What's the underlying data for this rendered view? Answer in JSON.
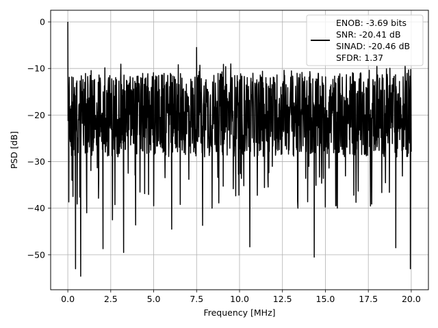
{
  "chart_data": {
    "type": "line",
    "xlabel": "Frequency [MHz]",
    "ylabel": "PSD [dB]",
    "xlim": [
      -1.0,
      21.0
    ],
    "ylim": [
      -57.5,
      2.5
    ],
    "x_ticks": [
      0.0,
      2.5,
      5.0,
      7.5,
      10.0,
      12.5,
      15.0,
      17.5,
      20.0
    ],
    "x_tick_labels": [
      "0.0",
      "2.5",
      "5.0",
      "7.5",
      "10.0",
      "12.5",
      "15.0",
      "17.5",
      "20.0"
    ],
    "y_ticks": [
      0,
      -10,
      -20,
      -30,
      -40,
      -50
    ],
    "y_tick_labels": [
      "0",
      "−10",
      "−20",
      "−30",
      "−40",
      "−50"
    ],
    "grid": true,
    "legend_position": "top-right",
    "series_color": "#000000",
    "series": [
      {
        "name": "ENOB: -3.69 bits\nSNR: -20.41 dB\nSINAD: -20.46 dB\nSFDR: 1.37",
        "x_range": [
          0.0,
          20.0
        ],
        "peak": {
          "x": 0.0,
          "y": 0.0
        },
        "noise_floor": {
          "typical_low": -29,
          "typical_high": -11,
          "min": -54.6,
          "max": -5.5
        },
        "notable_points": [
          {
            "x": 0.0,
            "y": 0.0
          },
          {
            "x": 0.05,
            "y": -18.0
          },
          {
            "x": 0.1,
            "y": -24.0
          },
          {
            "x": 0.3,
            "y": -37.5
          },
          {
            "x": 0.45,
            "y": -53.0
          },
          {
            "x": 0.75,
            "y": -54.6
          },
          {
            "x": 1.1,
            "y": -41.0
          },
          {
            "x": 2.05,
            "y": -48.7
          },
          {
            "x": 2.6,
            "y": -42.5
          },
          {
            "x": 3.25,
            "y": -49.5
          },
          {
            "x": 3.95,
            "y": -43.6
          },
          {
            "x": 5.0,
            "y": -39.5
          },
          {
            "x": 6.05,
            "y": -44.5
          },
          {
            "x": 7.5,
            "y": -5.5
          },
          {
            "x": 7.85,
            "y": -43.7
          },
          {
            "x": 8.4,
            "y": -40.0
          },
          {
            "x": 10.6,
            "y": -48.3
          },
          {
            "x": 13.4,
            "y": -40.0
          },
          {
            "x": 14.35,
            "y": -50.5
          },
          {
            "x": 15.6,
            "y": -39.5
          },
          {
            "x": 19.1,
            "y": -48.5
          },
          {
            "x": 19.95,
            "y": -53.0
          }
        ]
      }
    ]
  }
}
